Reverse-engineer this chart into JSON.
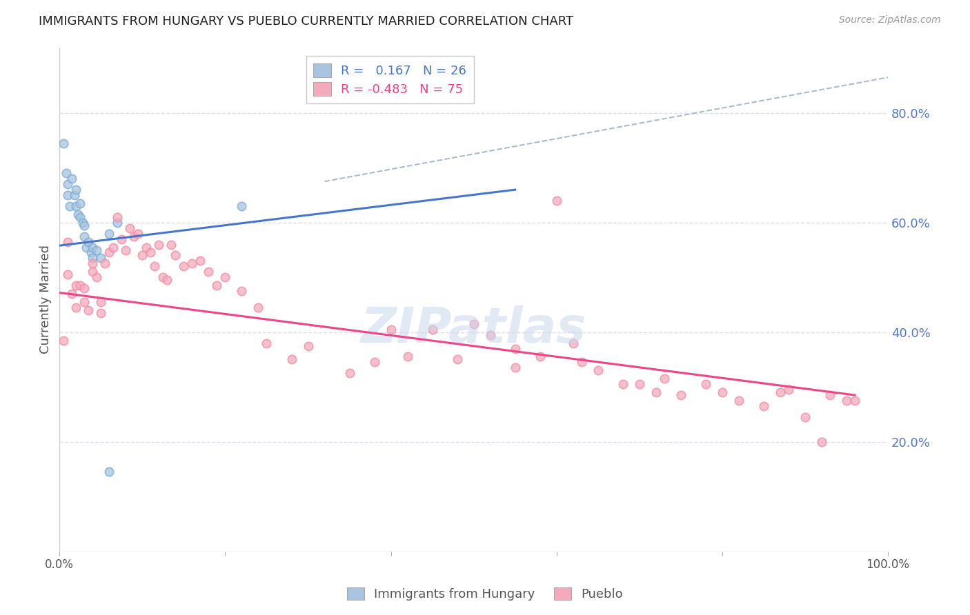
{
  "title": "IMMIGRANTS FROM HUNGARY VS PUEBLO CURRENTLY MARRIED CORRELATION CHART",
  "source": "Source: ZipAtlas.com",
  "ylabel": "Currently Married",
  "ytick_labels": [
    "20.0%",
    "40.0%",
    "60.0%",
    "80.0%"
  ],
  "ytick_values": [
    0.2,
    0.4,
    0.6,
    0.8
  ],
  "xlim": [
    0.0,
    1.0
  ],
  "ylim": [
    0.0,
    0.92
  ],
  "legend_r1_blue": "R =   0.167   N = 26",
  "legend_r2_pink": "R = -0.483   N = 75",
  "watermark": "ZIPatlas",
  "blue_fill": "#A8C4E0",
  "blue_edge": "#7AAAD0",
  "pink_fill": "#F4AABC",
  "pink_edge": "#F088A0",
  "blue_line_color": "#4477CC",
  "pink_line_color": "#EE4488",
  "dashed_line_color": "#AABBCC",
  "blue_scatter_x": [
    0.005,
    0.008,
    0.01,
    0.01,
    0.012,
    0.015,
    0.018,
    0.02,
    0.02,
    0.022,
    0.025,
    0.025,
    0.028,
    0.03,
    0.03,
    0.032,
    0.035,
    0.038,
    0.04,
    0.04,
    0.045,
    0.05,
    0.06,
    0.07,
    0.22,
    0.06
  ],
  "blue_scatter_y": [
    0.745,
    0.69,
    0.67,
    0.65,
    0.63,
    0.68,
    0.65,
    0.66,
    0.63,
    0.615,
    0.635,
    0.61,
    0.6,
    0.595,
    0.575,
    0.555,
    0.565,
    0.545,
    0.555,
    0.535,
    0.55,
    0.535,
    0.58,
    0.6,
    0.63,
    0.145
  ],
  "pink_scatter_x": [
    0.005,
    0.01,
    0.01,
    0.015,
    0.02,
    0.02,
    0.025,
    0.03,
    0.03,
    0.035,
    0.04,
    0.04,
    0.045,
    0.05,
    0.05,
    0.055,
    0.06,
    0.065,
    0.07,
    0.075,
    0.08,
    0.085,
    0.09,
    0.095,
    0.1,
    0.105,
    0.11,
    0.115,
    0.12,
    0.125,
    0.13,
    0.135,
    0.14,
    0.15,
    0.16,
    0.17,
    0.18,
    0.19,
    0.2,
    0.22,
    0.24,
    0.25,
    0.28,
    0.3,
    0.35,
    0.38,
    0.4,
    0.42,
    0.45,
    0.48,
    0.5,
    0.52,
    0.55,
    0.55,
    0.58,
    0.6,
    0.62,
    0.63,
    0.65,
    0.68,
    0.7,
    0.72,
    0.73,
    0.75,
    0.78,
    0.8,
    0.82,
    0.85,
    0.87,
    0.88,
    0.9,
    0.92,
    0.93,
    0.95,
    0.96
  ],
  "pink_scatter_y": [
    0.385,
    0.565,
    0.505,
    0.47,
    0.485,
    0.445,
    0.485,
    0.48,
    0.455,
    0.44,
    0.525,
    0.51,
    0.5,
    0.455,
    0.435,
    0.525,
    0.545,
    0.555,
    0.61,
    0.57,
    0.55,
    0.59,
    0.575,
    0.58,
    0.54,
    0.555,
    0.545,
    0.52,
    0.56,
    0.5,
    0.495,
    0.56,
    0.54,
    0.52,
    0.525,
    0.53,
    0.51,
    0.485,
    0.5,
    0.475,
    0.445,
    0.38,
    0.35,
    0.375,
    0.325,
    0.345,
    0.405,
    0.355,
    0.405,
    0.35,
    0.415,
    0.395,
    0.37,
    0.335,
    0.355,
    0.64,
    0.38,
    0.345,
    0.33,
    0.305,
    0.305,
    0.29,
    0.315,
    0.285,
    0.305,
    0.29,
    0.275,
    0.265,
    0.29,
    0.295,
    0.245,
    0.2,
    0.285,
    0.275,
    0.275
  ],
  "blue_line_x": [
    0.0,
    0.55
  ],
  "blue_line_y": [
    0.558,
    0.66
  ],
  "pink_line_x": [
    0.0,
    0.96
  ],
  "pink_line_y": [
    0.472,
    0.285
  ],
  "dashed_line_x": [
    0.32,
    1.0
  ],
  "dashed_line_y": [
    0.675,
    0.865
  ],
  "background_color": "#FFFFFF",
  "grid_color": "#DDDDEE",
  "title_color": "#222222",
  "right_tick_color": "#5577CC",
  "marker_size": 80
}
